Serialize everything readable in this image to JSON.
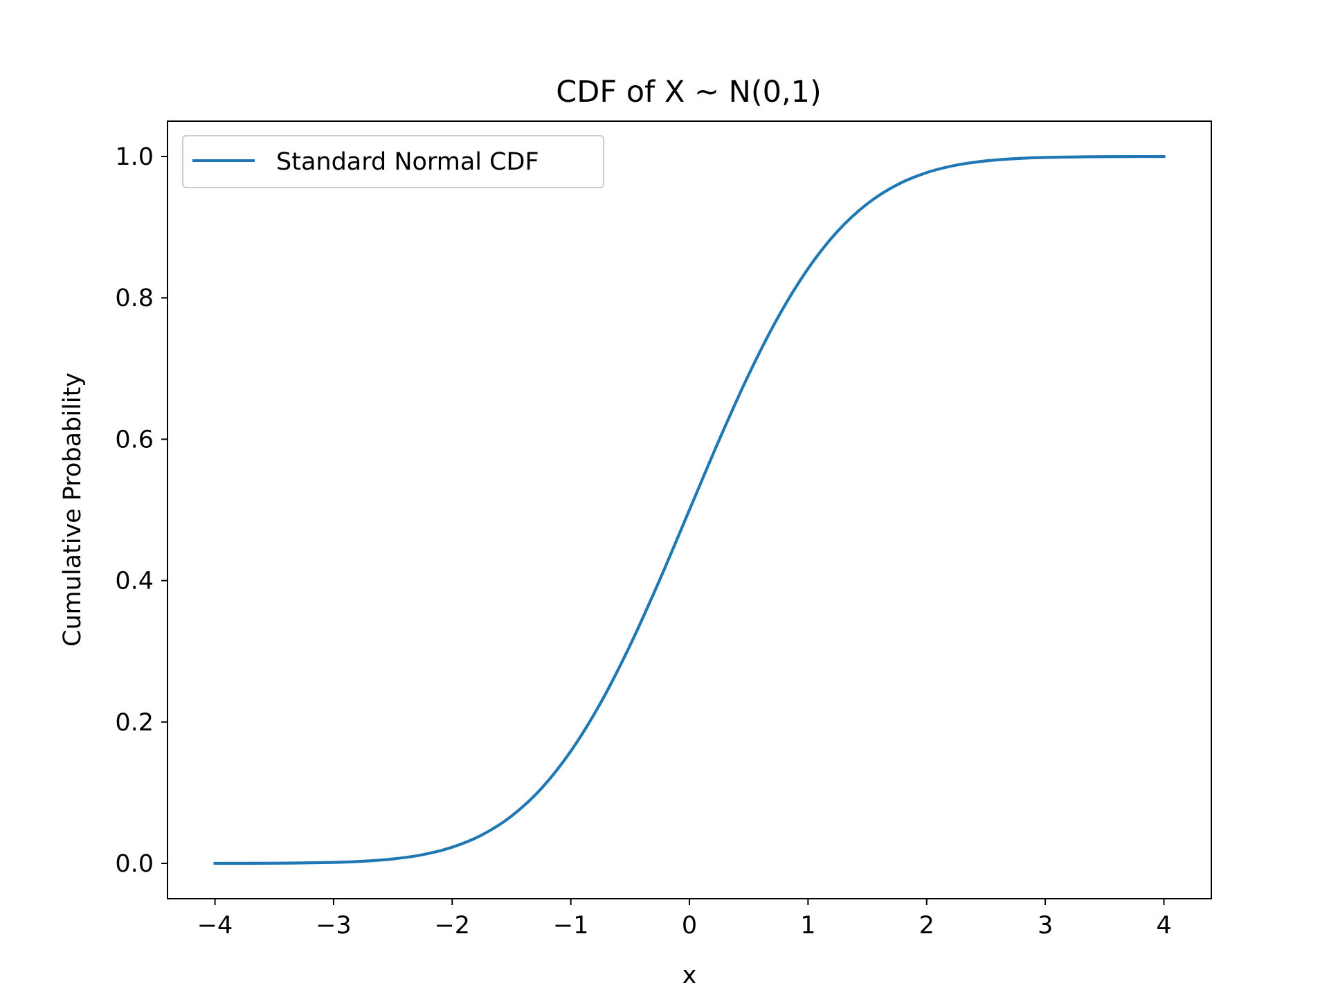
{
  "chart_data": {
    "type": "line",
    "title": "CDF of X ~ N(0,1)",
    "xlabel": "x",
    "ylabel": "Cumulative Probability",
    "xlim": [
      -4.4,
      4.4
    ],
    "ylim": [
      -0.05,
      1.05
    ],
    "x_ticks": [
      -4,
      -3,
      -2,
      -1,
      0,
      1,
      2,
      3,
      4
    ],
    "x_tick_labels": [
      "−4",
      "−3",
      "−2",
      "−1",
      "0",
      "1",
      "2",
      "3",
      "4"
    ],
    "y_ticks": [
      0.0,
      0.2,
      0.4,
      0.6,
      0.8,
      1.0
    ],
    "y_tick_labels": [
      "0.0",
      "0.2",
      "0.4",
      "0.6",
      "0.8",
      "1.0"
    ],
    "grid": false,
    "legend_position": "upper-left",
    "series": [
      {
        "name": "Standard Normal CDF",
        "color": "#1f77b4",
        "x": [
          -4.0,
          -3.5,
          -3.0,
          -2.75,
          -2.5,
          -2.25,
          -2.0,
          -1.75,
          -1.5,
          -1.25,
          -1.0,
          -0.75,
          -0.5,
          -0.25,
          0.0,
          0.25,
          0.5,
          0.75,
          1.0,
          1.25,
          1.5,
          1.75,
          2.0,
          2.25,
          2.5,
          2.75,
          3.0,
          3.5,
          4.0
        ],
        "y": [
          0.0,
          0.0002,
          0.0013,
          0.003,
          0.0062,
          0.0122,
          0.0228,
          0.0401,
          0.0668,
          0.1056,
          0.1587,
          0.2266,
          0.3085,
          0.4013,
          0.5,
          0.5987,
          0.6915,
          0.7734,
          0.8413,
          0.8944,
          0.9332,
          0.9599,
          0.9772,
          0.9878,
          0.9938,
          0.997,
          0.9987,
          0.9998,
          1.0
        ]
      }
    ]
  }
}
